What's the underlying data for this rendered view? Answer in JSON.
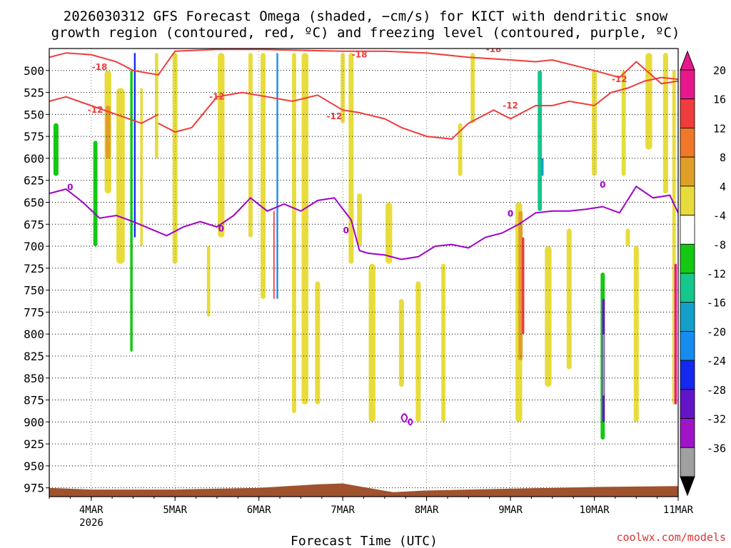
{
  "chart_data": {
    "type": "heatmap",
    "title_line1": "2026030312 GFS Forecast Omega (shaded, −cm/s) for KICT with dendritic snow",
    "title_line2": "growth region (contoured, red, ºC) and freezing level (contoured, purple, ºC)",
    "xlabel": "Forecast Time (UTC)",
    "credit": "coolwx.com/models",
    "x_ticks": [
      "4MAR",
      "5MAR",
      "6MAR",
      "7MAR",
      "8MAR",
      "9MAR",
      "10MAR",
      "11MAR"
    ],
    "x_tick_year": "2026",
    "x_range_days": [
      -0.5,
      7.0
    ],
    "y_ticks": [
      500,
      525,
      550,
      575,
      600,
      625,
      650,
      675,
      700,
      725,
      750,
      775,
      800,
      825,
      850,
      875,
      900,
      925,
      950,
      975
    ],
    "y_range_hpa": [
      475,
      985
    ],
    "colorbar": {
      "labels": [
        "20",
        "16",
        "12",
        "8",
        "4",
        "-4",
        "-8",
        "-12",
        "-16",
        "-20",
        "-24",
        "-28",
        "-32",
        "-36"
      ],
      "colors": [
        "#e8188c",
        "#f03c3c",
        "#f07828",
        "#e0a028",
        "#e8dc3c",
        "#ffffff",
        "#14c814",
        "#14c88c",
        "#14a0c8",
        "#148cf0",
        "#1428f0",
        "#6414c8",
        "#a014c8",
        "#a0a0a0"
      ]
    },
    "isotherm_labels": [
      "-18",
      "-12",
      "0"
    ],
    "terrain_color": "#a0522d",
    "series": [
      {
        "name": "-18 ºC isotherm (red)",
        "color": "#f03c3c",
        "x": [
          -0.5,
          -0.3,
          0.0,
          0.3,
          0.5,
          0.8,
          1.0,
          1.5,
          2.0,
          2.5,
          3.0,
          3.5,
          4.0,
          4.5,
          5.0,
          5.3,
          5.5,
          6.0,
          6.3,
          6.5,
          6.8,
          7.0
        ],
        "y": [
          485,
          480,
          482,
          490,
          500,
          505,
          478,
          476,
          476,
          477,
          478,
          478,
          480,
          485,
          488,
          490,
          488,
          500,
          508,
          490,
          515,
          512
        ]
      },
      {
        "name": "-12 ºC isotherm upper (red)",
        "color": "#f03c3c",
        "x": [
          -0.5,
          -0.3,
          0.0,
          0.3,
          0.6,
          0.8
        ],
        "y": [
          535,
          530,
          540,
          550,
          560,
          550
        ]
      },
      {
        "name": "-12 ºC isotherm lower (red)",
        "color": "#f03c3c",
        "x": [
          0.8,
          1.0,
          1.2,
          1.5,
          1.8,
          2.1,
          2.4,
          2.7,
          3.0,
          3.2,
          3.5,
          3.7,
          4.0,
          4.3,
          4.5,
          4.8,
          5.0,
          5.3,
          5.5,
          5.7,
          6.0,
          6.2,
          6.4,
          6.6,
          6.8,
          7.0
        ],
        "y": [
          560,
          570,
          565,
          530,
          525,
          530,
          535,
          528,
          545,
          548,
          555,
          565,
          575,
          578,
          560,
          545,
          555,
          540,
          540,
          535,
          540,
          525,
          520,
          512,
          508,
          510
        ]
      },
      {
        "name": "0 ºC freezing level (purple)",
        "color": "#a000c8",
        "x": [
          -0.5,
          -0.3,
          -0.1,
          0.1,
          0.3,
          0.5,
          0.7,
          0.9,
          1.1,
          1.3,
          1.5,
          1.7,
          1.9,
          2.1,
          2.3,
          2.5,
          2.7,
          2.9,
          3.1,
          3.2,
          3.3,
          3.5,
          3.7,
          3.9,
          4.1,
          4.3,
          4.5,
          4.7,
          4.9,
          5.1,
          5.3,
          5.5,
          5.7,
          5.9,
          6.1,
          6.3,
          6.5,
          6.7,
          6.9,
          7.0
        ],
        "y": [
          640,
          635,
          650,
          668,
          665,
          672,
          680,
          688,
          678,
          672,
          678,
          665,
          645,
          660,
          652,
          660,
          648,
          645,
          670,
          705,
          708,
          710,
          715,
          712,
          700,
          698,
          702,
          690,
          685,
          675,
          662,
          660,
          660,
          658,
          655,
          662,
          632,
          645,
          642,
          662
        ]
      }
    ]
  }
}
